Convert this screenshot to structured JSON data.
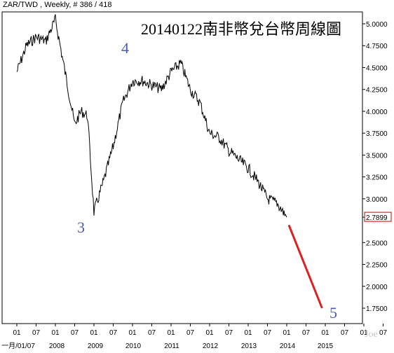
{
  "header": "ZAR/TWD , Weekly, # 386 / 418",
  "title": "20140122南非幣兌台幣周線圖",
  "watermark": "Joe",
  "wave_labels": [
    "4",
    "3",
    "5"
  ],
  "chart_data": {
    "type": "line",
    "ylim": [
      1.5,
      5.1
    ],
    "y_ticks": [
      "5.0000",
      "4.7500",
      "4.5000",
      "4.2500",
      "4.0000",
      "3.7500",
      "3.5000",
      "3.2500",
      "3.0000",
      "2.7899",
      "2.5000",
      "2.2500",
      "2.0000",
      "1.7500"
    ],
    "last_price": "2.7899",
    "x_month_labels": [
      "01",
      "07",
      "01",
      "07",
      "01",
      "07",
      "01",
      "07",
      "01",
      "07",
      "01",
      "07",
      "01",
      "07",
      "01",
      "07",
      "01",
      "07",
      "01",
      "07"
    ],
    "x_year_labels": [
      "一月/01/07",
      "2008",
      "2009",
      "2010",
      "2011",
      "2012",
      "2013",
      "2014",
      "2015"
    ],
    "price_series": {
      "x": [
        "2007-01",
        "2007-04",
        "2007-07",
        "2007-10",
        "2008-01",
        "2008-04",
        "2008-07",
        "2008-09",
        "2008-11",
        "2009-01",
        "2009-04",
        "2009-07",
        "2009-10",
        "2010-01",
        "2010-04",
        "2010-07",
        "2010-10",
        "2011-01",
        "2011-04",
        "2011-07",
        "2011-10",
        "2012-01",
        "2012-04",
        "2012-07",
        "2012-10",
        "2013-01",
        "2013-04",
        "2013-07",
        "2013-10",
        "2014-01"
      ],
      "y": [
        4.45,
        4.75,
        4.85,
        4.8,
        5.05,
        4.45,
        3.85,
        4.0,
        3.95,
        2.85,
        3.2,
        3.6,
        4.1,
        4.35,
        4.35,
        4.3,
        4.25,
        4.45,
        4.55,
        4.25,
        4.1,
        3.75,
        3.7,
        3.55,
        3.45,
        3.35,
        3.2,
        3.0,
        2.95,
        2.79
      ]
    },
    "projection_series": {
      "x": [
        "2014-01",
        "2014-12"
      ],
      "y": [
        2.7,
        1.75
      ]
    }
  },
  "colors": {
    "price": "#000000",
    "projection": "#e02020",
    "axis": "#000000",
    "last_price_box": "#cc0000",
    "wave": "#4a5fb0"
  }
}
